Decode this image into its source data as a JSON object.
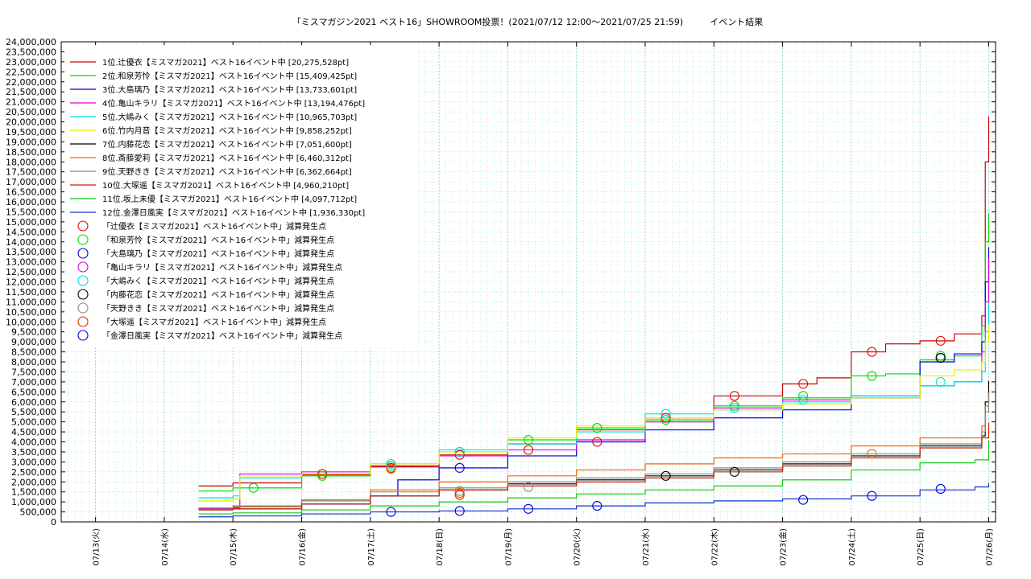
{
  "chart_data": {
    "type": "line",
    "title": "「ミスマガジン2021 ベスト16」SHOWROOM投票！(2021/07/12 12:00～2021/07/25 21:59)　　　イベント結果",
    "xlabel": "",
    "ylabel": "",
    "x_categories": [
      "07/13(火)",
      "07/14(水)",
      "07/15(木)",
      "07/16(金)",
      "07/17(土)",
      "07/18(日)",
      "07/19(月)",
      "07/20(火)",
      "07/21(水)",
      "07/22(木)",
      "07/23(金)",
      "07/24(土)",
      "07/25(日)",
      "07/26(月)"
    ],
    "x_range_days": [
      -0.5,
      13.1
    ],
    "ylim": [
      0,
      24000000
    ],
    "y_ticks": [
      "0",
      "500,000",
      "1,000,000",
      "1,500,000",
      "2,000,000",
      "2,500,000",
      "3,000,000",
      "3,500,000",
      "4,000,000",
      "4,500,000",
      "5,000,000",
      "5,500,000",
      "6,000,000",
      "6,500,000",
      "7,000,000",
      "7,500,000",
      "8,000,000",
      "8,500,000",
      "9,000,000",
      "9,500,000",
      "10,000,000",
      "10,500,000",
      "11,000,000",
      "11,500,000",
      "12,000,000",
      "12,500,000",
      "13,000,000",
      "13,500,000",
      "14,000,000",
      "14,500,000",
      "15,000,000",
      "15,500,000",
      "16,000,000",
      "16,500,000",
      "17,000,000",
      "17,500,000",
      "18,000,000",
      "18,500,000",
      "19,000,000",
      "19,500,000",
      "20,000,000",
      "20,500,000",
      "21,000,000",
      "21,500,000",
      "22,000,000",
      "22,500,000",
      "23,000,000",
      "23,500,000",
      "24,000,000"
    ],
    "grid": true,
    "legend_position": "top-left",
    "series": [
      {
        "name": "1位.辻優衣【ミスマガ2021】ベスト16イベント中 [20,275,528pt]",
        "color": "#cc0000",
        "points": [
          [
            1.5,
            1800000
          ],
          [
            2.0,
            1950000
          ],
          [
            3.0,
            2350000
          ],
          [
            4.0,
            2750000
          ],
          [
            5.0,
            3350000
          ],
          [
            6.0,
            3900000
          ],
          [
            7.0,
            4600000
          ],
          [
            8.0,
            5200000
          ],
          [
            9.0,
            6300000
          ],
          [
            10.0,
            6900000
          ],
          [
            10.5,
            7200000
          ],
          [
            11.0,
            8500000
          ],
          [
            11.5,
            8900000
          ],
          [
            12.0,
            9050000
          ],
          [
            12.5,
            9400000
          ],
          [
            12.9,
            10300000
          ],
          [
            12.95,
            18000000
          ],
          [
            13.0,
            20275528
          ]
        ],
        "drops": [
          [
            3.3,
            2400000
          ],
          [
            4.3,
            2700000
          ],
          [
            5.3,
            3350000
          ],
          [
            6.3,
            3600000
          ],
          [
            7.3,
            4000000
          ],
          [
            8.3,
            5200000
          ],
          [
            9.3,
            6300000
          ],
          [
            10.3,
            6900000
          ],
          [
            11.3,
            8500000
          ],
          [
            12.3,
            9050000
          ]
        ]
      },
      {
        "name": "2位.和泉芳怜【ミスマガ2021】ベスト16イベント中 [15,409,425pt]",
        "color": "#00dd00",
        "points": [
          [
            1.5,
            1550000
          ],
          [
            2.0,
            1700000
          ],
          [
            3.0,
            2300000
          ],
          [
            4.0,
            2800000
          ],
          [
            5.0,
            3500000
          ],
          [
            6.0,
            4100000
          ],
          [
            7.0,
            4700000
          ],
          [
            8.0,
            5100000
          ],
          [
            9.0,
            5800000
          ],
          [
            10.0,
            6200000
          ],
          [
            11.0,
            7300000
          ],
          [
            11.5,
            7400000
          ],
          [
            12.0,
            8100000
          ],
          [
            12.5,
            8300000
          ],
          [
            12.9,
            9800000
          ],
          [
            12.95,
            14000000
          ],
          [
            13.0,
            15409425
          ]
        ],
        "drops": [
          [
            2.3,
            1700000
          ],
          [
            3.3,
            2300000
          ],
          [
            4.3,
            2800000
          ],
          [
            5.3,
            3500000
          ],
          [
            6.3,
            4100000
          ],
          [
            7.3,
            4700000
          ],
          [
            8.3,
            5100000
          ],
          [
            9.3,
            5800000
          ],
          [
            10.3,
            6300000
          ],
          [
            11.3,
            7300000
          ],
          [
            12.3,
            8300000
          ]
        ]
      },
      {
        "name": "3位.大島璃乃【ミスマガ2021】ベスト16イベント中 [13,733,601pt]",
        "color": "#0000cc",
        "points": [
          [
            1.5,
            700000
          ],
          [
            2.0,
            750000
          ],
          [
            3.0,
            900000
          ],
          [
            4.0,
            1300000
          ],
          [
            4.4,
            2100000
          ],
          [
            5.0,
            2700000
          ],
          [
            6.0,
            3300000
          ],
          [
            7.0,
            4000000
          ],
          [
            8.0,
            4600000
          ],
          [
            9.0,
            5200000
          ],
          [
            10.0,
            5600000
          ],
          [
            11.0,
            6200000
          ],
          [
            12.0,
            8000000
          ],
          [
            12.5,
            8400000
          ],
          [
            12.9,
            9000000
          ],
          [
            12.95,
            12000000
          ],
          [
            13.0,
            13733601
          ]
        ],
        "drops": [
          [
            5.3,
            2700000
          ],
          [
            12.3,
            8200000
          ]
        ]
      },
      {
        "name": "4位.亀山キラリ【ミスマガ2021】ベスト16イベント中 [13,194,476pt]",
        "color": "#dd00dd",
        "points": [
          [
            1.5,
            650000
          ],
          [
            2.0,
            700000
          ],
          [
            2.1,
            2400000
          ],
          [
            3.0,
            2500000
          ],
          [
            4.0,
            2800000
          ],
          [
            5.0,
            3300000
          ],
          [
            6.0,
            3600000
          ],
          [
            7.0,
            4100000
          ],
          [
            8.0,
            5000000
          ],
          [
            9.0,
            5700000
          ],
          [
            10.0,
            6100000
          ],
          [
            11.0,
            6300000
          ],
          [
            12.0,
            6800000
          ],
          [
            12.5,
            7000000
          ],
          [
            12.9,
            8500000
          ],
          [
            12.95,
            11000000
          ],
          [
            13.0,
            13194476
          ]
        ],
        "drops": []
      },
      {
        "name": "5位.大嶋みく【ミスマガ2021】ベスト16イベント中 [10,965,703pt]",
        "color": "#00dddd",
        "points": [
          [
            1.5,
            1200000
          ],
          [
            2.0,
            1300000
          ],
          [
            2.1,
            2200000
          ],
          [
            3.0,
            2400000
          ],
          [
            4.0,
            2900000
          ],
          [
            5.0,
            3600000
          ],
          [
            6.0,
            3900000
          ],
          [
            7.0,
            4500000
          ],
          [
            8.0,
            5400000
          ],
          [
            9.0,
            5600000
          ],
          [
            10.0,
            6000000
          ],
          [
            11.0,
            6300000
          ],
          [
            12.0,
            6800000
          ],
          [
            12.5,
            7000000
          ],
          [
            12.9,
            7500000
          ],
          [
            12.95,
            9500000
          ],
          [
            13.0,
            10965703
          ]
        ],
        "drops": [
          [
            4.3,
            2900000
          ],
          [
            5.3,
            3500000
          ],
          [
            8.3,
            5400000
          ],
          [
            9.3,
            5700000
          ],
          [
            10.3,
            6100000
          ],
          [
            12.3,
            7000000
          ]
        ]
      },
      {
        "name": "6位.竹内月音【ミスマガ2021】ベスト16イベント中 [9,858,252pt]",
        "color": "#eeee00",
        "points": [
          [
            1.5,
            1050000
          ],
          [
            2.0,
            1150000
          ],
          [
            2.1,
            2300000
          ],
          [
            3.0,
            2400000
          ],
          [
            4.0,
            2900000
          ],
          [
            5.0,
            3500000
          ],
          [
            6.0,
            4200000
          ],
          [
            7.0,
            4800000
          ],
          [
            8.0,
            5200000
          ],
          [
            9.0,
            5600000
          ],
          [
            10.0,
            5900000
          ],
          [
            11.0,
            6200000
          ],
          [
            12.0,
            7300000
          ],
          [
            12.5,
            7600000
          ],
          [
            12.9,
            8000000
          ],
          [
            12.95,
            9000000
          ],
          [
            13.0,
            9858252
          ]
        ],
        "drops": []
      },
      {
        "name": "7位.内藤花恋【ミスマガ2021】ベスト16イベント中 [7,051,600pt]",
        "color": "#000000",
        "points": [
          [
            1.5,
            600000
          ],
          [
            2.0,
            650000
          ],
          [
            3.0,
            900000
          ],
          [
            4.0,
            1300000
          ],
          [
            5.0,
            1600000
          ],
          [
            6.0,
            1900000
          ],
          [
            7.0,
            2100000
          ],
          [
            8.0,
            2300000
          ],
          [
            9.0,
            2600000
          ],
          [
            10.0,
            2900000
          ],
          [
            11.0,
            3300000
          ],
          [
            12.0,
            3800000
          ],
          [
            12.9,
            4300000
          ],
          [
            12.95,
            6000000
          ],
          [
            13.0,
            7051600
          ]
        ],
        "drops": [
          [
            8.3,
            2300000
          ],
          [
            9.3,
            2500000
          ],
          [
            12.3,
            8200000
          ]
        ]
      },
      {
        "name": "8位.斎藤愛莉【ミスマガ2021】ベスト16イベント中 [6,460,312pt]",
        "color": "#ee6600",
        "points": [
          [
            1.5,
            700000
          ],
          [
            2.0,
            800000
          ],
          [
            3.0,
            1100000
          ],
          [
            4.0,
            1600000
          ],
          [
            5.0,
            2000000
          ],
          [
            6.0,
            2300000
          ],
          [
            7.0,
            2600000
          ],
          [
            8.0,
            2900000
          ],
          [
            9.0,
            3200000
          ],
          [
            10.0,
            3400000
          ],
          [
            11.0,
            3800000
          ],
          [
            12.0,
            4200000
          ],
          [
            12.9,
            4800000
          ],
          [
            12.95,
            5800000
          ],
          [
            13.0,
            6460312
          ]
        ],
        "drops": [
          [
            4.3,
            2650000
          ],
          [
            5.3,
            1450000
          ],
          [
            11.3,
            3400000
          ]
        ]
      },
      {
        "name": "9位.天野きき【ミスマガ2021】ベスト16イベント中 [6,362,664pt]",
        "color": "#888888",
        "points": [
          [
            1.5,
            700000
          ],
          [
            2.0,
            750000
          ],
          [
            3.0,
            1050000
          ],
          [
            4.0,
            1500000
          ],
          [
            5.0,
            1700000
          ],
          [
            6.0,
            2000000
          ],
          [
            7.0,
            2200000
          ],
          [
            8.0,
            2400000
          ],
          [
            9.0,
            2700000
          ],
          [
            10.0,
            3000000
          ],
          [
            11.0,
            3400000
          ],
          [
            12.0,
            3900000
          ],
          [
            12.9,
            4500000
          ],
          [
            12.95,
            5500000
          ],
          [
            13.0,
            6362664
          ]
        ],
        "drops": [
          [
            5.3,
            1550000
          ],
          [
            6.3,
            1750000
          ]
        ]
      },
      {
        "name": "10位.大塚遥【ミスマガ2021】ベスト16イベント中 [4,960,210pt]",
        "color": "#cc2200",
        "points": [
          [
            1.5,
            600000
          ],
          [
            2.0,
            650000
          ],
          [
            3.0,
            900000
          ],
          [
            4.0,
            1300000
          ],
          [
            5.0,
            1600000
          ],
          [
            6.0,
            1800000
          ],
          [
            7.0,
            2000000
          ],
          [
            8.0,
            2200000
          ],
          [
            9.0,
            2500000
          ],
          [
            10.0,
            2800000
          ],
          [
            11.0,
            3200000
          ],
          [
            12.0,
            3700000
          ],
          [
            12.9,
            4200000
          ],
          [
            13.0,
            4960210
          ]
        ],
        "drops": [
          [
            5.3,
            1350000
          ]
        ]
      },
      {
        "name": "11位.坂上未優【ミスマガ2021】ベスト16イベント中 [4,097,712pt]",
        "color": "#11cc11",
        "points": [
          [
            1.5,
            400000
          ],
          [
            2.0,
            450000
          ],
          [
            3.0,
            600000
          ],
          [
            4.0,
            800000
          ],
          [
            5.0,
            1000000
          ],
          [
            6.0,
            1200000
          ],
          [
            7.0,
            1400000
          ],
          [
            8.0,
            1600000
          ],
          [
            9.0,
            1800000
          ],
          [
            10.0,
            2100000
          ],
          [
            11.0,
            2600000
          ],
          [
            12.0,
            2950000
          ],
          [
            12.8,
            3100000
          ],
          [
            13.0,
            4097712
          ]
        ],
        "drops": []
      },
      {
        "name": "12位.金澤日風実【ミスマガ2021】ベスト16イベント中 [1,936,330pt]",
        "color": "#1133cc",
        "points": [
          [
            1.5,
            250000
          ],
          [
            2.0,
            300000
          ],
          [
            3.0,
            400000
          ],
          [
            4.0,
            500000
          ],
          [
            5.0,
            550000
          ],
          [
            6.0,
            650000
          ],
          [
            7.0,
            800000
          ],
          [
            8.0,
            950000
          ],
          [
            9.0,
            1050000
          ],
          [
            10.0,
            1150000
          ],
          [
            11.0,
            1300000
          ],
          [
            12.0,
            1600000
          ],
          [
            12.8,
            1750000
          ],
          [
            13.0,
            1936330
          ]
        ],
        "drops": [
          [
            4.3,
            500000
          ],
          [
            5.3,
            550000
          ],
          [
            6.3,
            650000
          ],
          [
            7.3,
            800000
          ],
          [
            10.3,
            1100000
          ],
          [
            11.3,
            1300000
          ],
          [
            12.3,
            1650000
          ]
        ]
      }
    ],
    "drop_legend": [
      {
        "label": "「辻優衣【ミスマガ2021】ベスト16イベント中」減算発生点",
        "color": "#ee0000"
      },
      {
        "label": "「和泉芳怜【ミスマガ2021】ベスト16イベント中」減算発生点",
        "color": "#00dd00"
      },
      {
        "label": "「大島璃乃【ミスマガ2021】ベスト16イベント中」減算発生点",
        "color": "#0000dd"
      },
      {
        "label": "「亀山キラリ【ミスマガ2021】ベスト16イベント中」減算発生点",
        "color": "#dd00dd"
      },
      {
        "label": "「大嶋みく【ミスマガ2021】ベスト16イベント中」減算発生点",
        "color": "#00dddd"
      },
      {
        "label": "「内藤花恋【ミスマガ2021】ベスト16イベント中」減算発生点",
        "color": "#000000"
      },
      {
        "label": "「天野きき【ミスマガ2021】ベスト16イベント中」減算発生点",
        "color": "#888888"
      },
      {
        "label": "「大塚遥【ミスマガ2021】ベスト16イベント中」減算発生点",
        "color": "#ee2200"
      },
      {
        "label": "「金澤日風実【ミスマガ2021】ベスト16イベント中」減算発生点",
        "color": "#0000dd"
      }
    ]
  }
}
